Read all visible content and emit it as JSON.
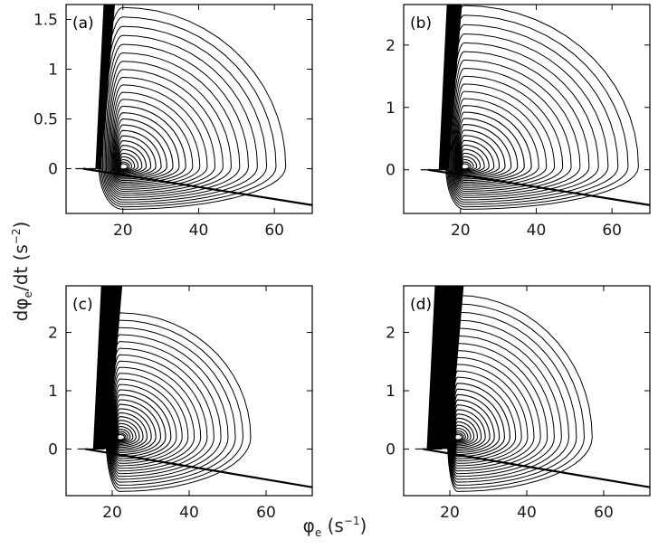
{
  "chart_data": [
    {
      "type": "line",
      "panel_label": "(a)",
      "xlim": [
        5,
        70
      ],
      "ylim": [
        -0.45,
        1.65
      ],
      "xticks": [
        "20",
        "40",
        "60"
      ],
      "xtick_values": [
        20,
        40,
        60
      ],
      "yticks": [
        "0",
        "0.5",
        "1",
        "1.5"
      ],
      "ytick_values": [
        0,
        0.5,
        1,
        1.5
      ],
      "trajectory": {
        "focus": [
          20,
          0.02
        ],
        "band_x": 13.5,
        "band_width": 1.5,
        "outer_x": 62,
        "outer_top": 1.6
      },
      "grid": false
    },
    {
      "type": "line",
      "panel_label": "(b)",
      "xlim": [
        5,
        70
      ],
      "ylim": [
        -0.7,
        2.65
      ],
      "xticks": [
        "20",
        "40",
        "60"
      ],
      "xtick_values": [
        20,
        40,
        60
      ],
      "yticks": [
        "0",
        "1",
        "2"
      ],
      "ytick_values": [
        0,
        1,
        2
      ],
      "trajectory": {
        "focus": [
          21,
          0.05
        ],
        "band_x": 15.5,
        "band_width": 2.5,
        "outer_x": 66,
        "outer_top": 2.6
      },
      "grid": false
    },
    {
      "type": "line",
      "panel_label": "(c)",
      "xlim": [
        8,
        72
      ],
      "ylim": [
        -0.8,
        2.8
      ],
      "xticks": [
        "20",
        "40",
        "60"
      ],
      "xtick_values": [
        20,
        40,
        60
      ],
      "yticks": [
        "0",
        "1",
        "2"
      ],
      "ytick_values": [
        0,
        1,
        2
      ],
      "trajectory": {
        "focus": [
          22,
          0.2
        ],
        "band_x": 17,
        "band_width": 4,
        "outer_x": 55,
        "outer_top": 2.3
      },
      "grid": false
    },
    {
      "type": "line",
      "panel_label": "(d)",
      "xlim": [
        8,
        72
      ],
      "ylim": [
        -0.8,
        2.8
      ],
      "xticks": [
        "20",
        "40",
        "60"
      ],
      "xtick_values": [
        20,
        40,
        60
      ],
      "yticks": [
        "0",
        "1",
        "2"
      ],
      "ytick_values": [
        0,
        1,
        2
      ],
      "trajectory": {
        "focus": [
          22,
          0.2
        ],
        "band_x": 17,
        "band_width": 6,
        "outer_x": 56,
        "outer_top": 2.6
      },
      "grid": false
    }
  ],
  "axes": {
    "ylabel_main": "dφ",
    "ylabel_sub": "e",
    "ylabel_tail": "/dt (s",
    "ylabel_sup": "−2",
    "ylabel_close": ")",
    "xlabel_main": "φ",
    "xlabel_sub": "e",
    "xlabel_tail": " (s",
    "xlabel_sup": "−1",
    "xlabel_close": ")"
  },
  "colors": {
    "line": "#000000",
    "axis": "#000000",
    "background": "#ffffff"
  }
}
